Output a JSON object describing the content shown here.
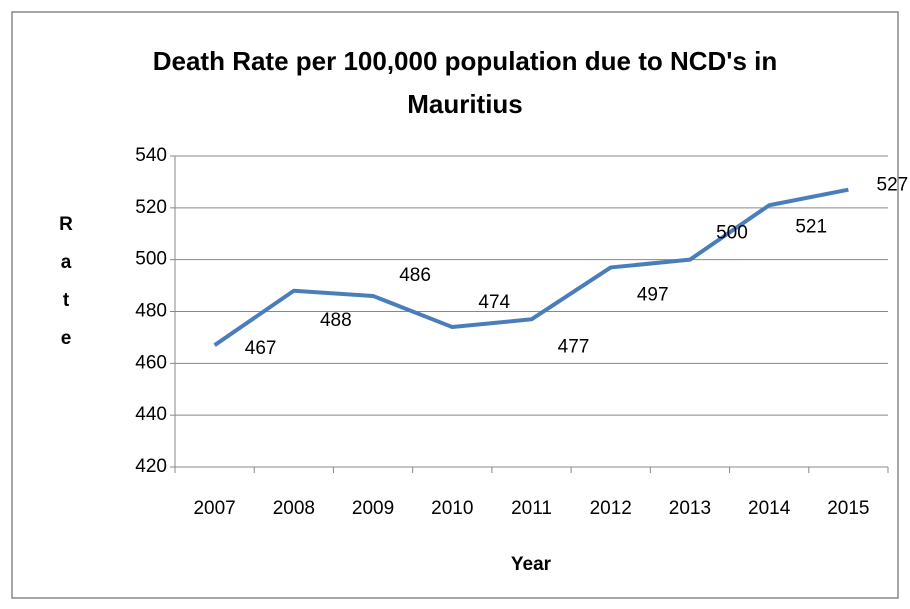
{
  "chart_data": {
    "type": "line",
    "title": "Death Rate per 100,000 population due to NCD's in Mauritius",
    "x_label": "Year",
    "y_label": "Rate",
    "categories": [
      "2007",
      "2008",
      "2009",
      "2010",
      "2011",
      "2012",
      "2013",
      "2014",
      "2015"
    ],
    "series": [
      {
        "name": "Rate",
        "color": "#4a7ebb",
        "values": [
          467,
          488,
          486,
          474,
          477,
          497,
          500,
          521,
          527
        ]
      }
    ],
    "ylim": [
      420,
      540
    ],
    "yticks": [
      420,
      440,
      460,
      480,
      500,
      520,
      540
    ],
    "grid": true,
    "data_labels": true
  }
}
